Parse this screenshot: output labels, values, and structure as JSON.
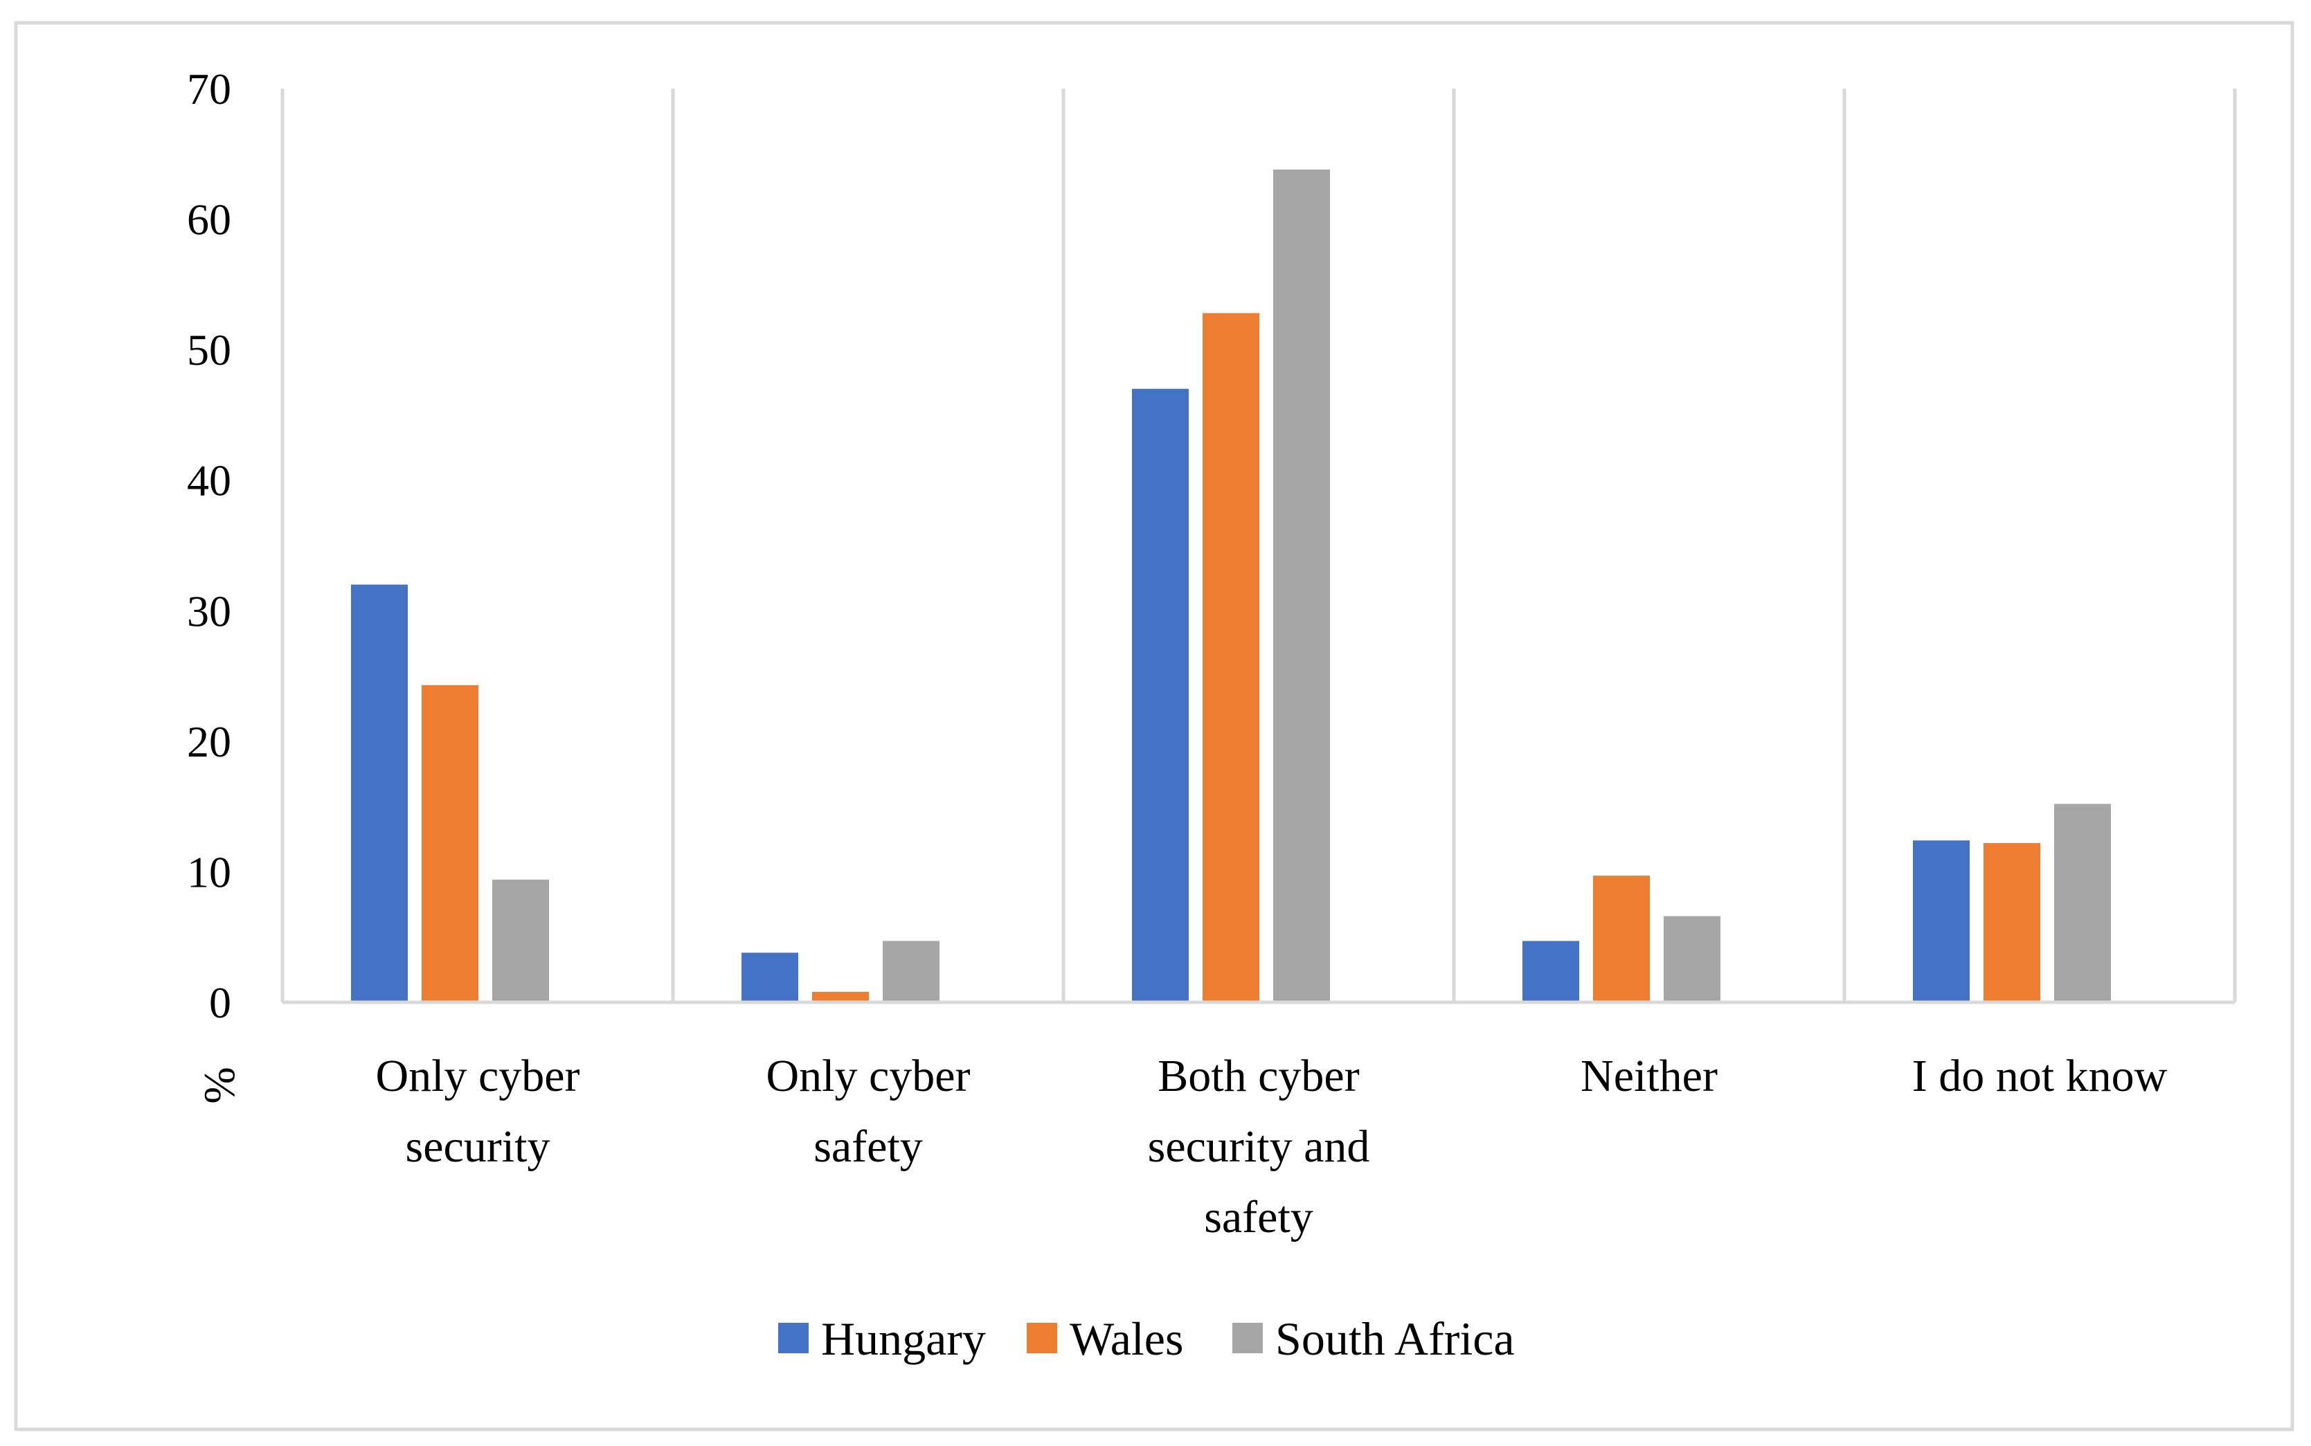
{
  "chart_data": {
    "type": "bar",
    "title": "",
    "xlabel": "",
    "ylabel": "%",
    "ylim": [
      0,
      70
    ],
    "yticks": [
      0,
      10,
      20,
      30,
      40,
      50,
      60,
      70
    ],
    "grid": "vertical separators between categories",
    "legend_position": "bottom",
    "categories": [
      [
        "Only cyber",
        "security"
      ],
      [
        "Only cyber",
        "safety"
      ],
      [
        "Both cyber",
        "security and",
        "safety"
      ],
      [
        "Neither"
      ],
      [
        "I do not know"
      ]
    ],
    "series": [
      {
        "name": "Hungary",
        "color": "#4472C4",
        "values": [
          32,
          3.8,
          47,
          4.7,
          12.4
        ]
      },
      {
        "name": "Wales",
        "color": "#ED7D31",
        "values": [
          24.3,
          0.8,
          52.8,
          9.7,
          12.2
        ]
      },
      {
        "name": "South Africa",
        "color": "#A5A5A5",
        "values": [
          9.4,
          4.7,
          63.8,
          6.6,
          15.2
        ]
      }
    ]
  }
}
